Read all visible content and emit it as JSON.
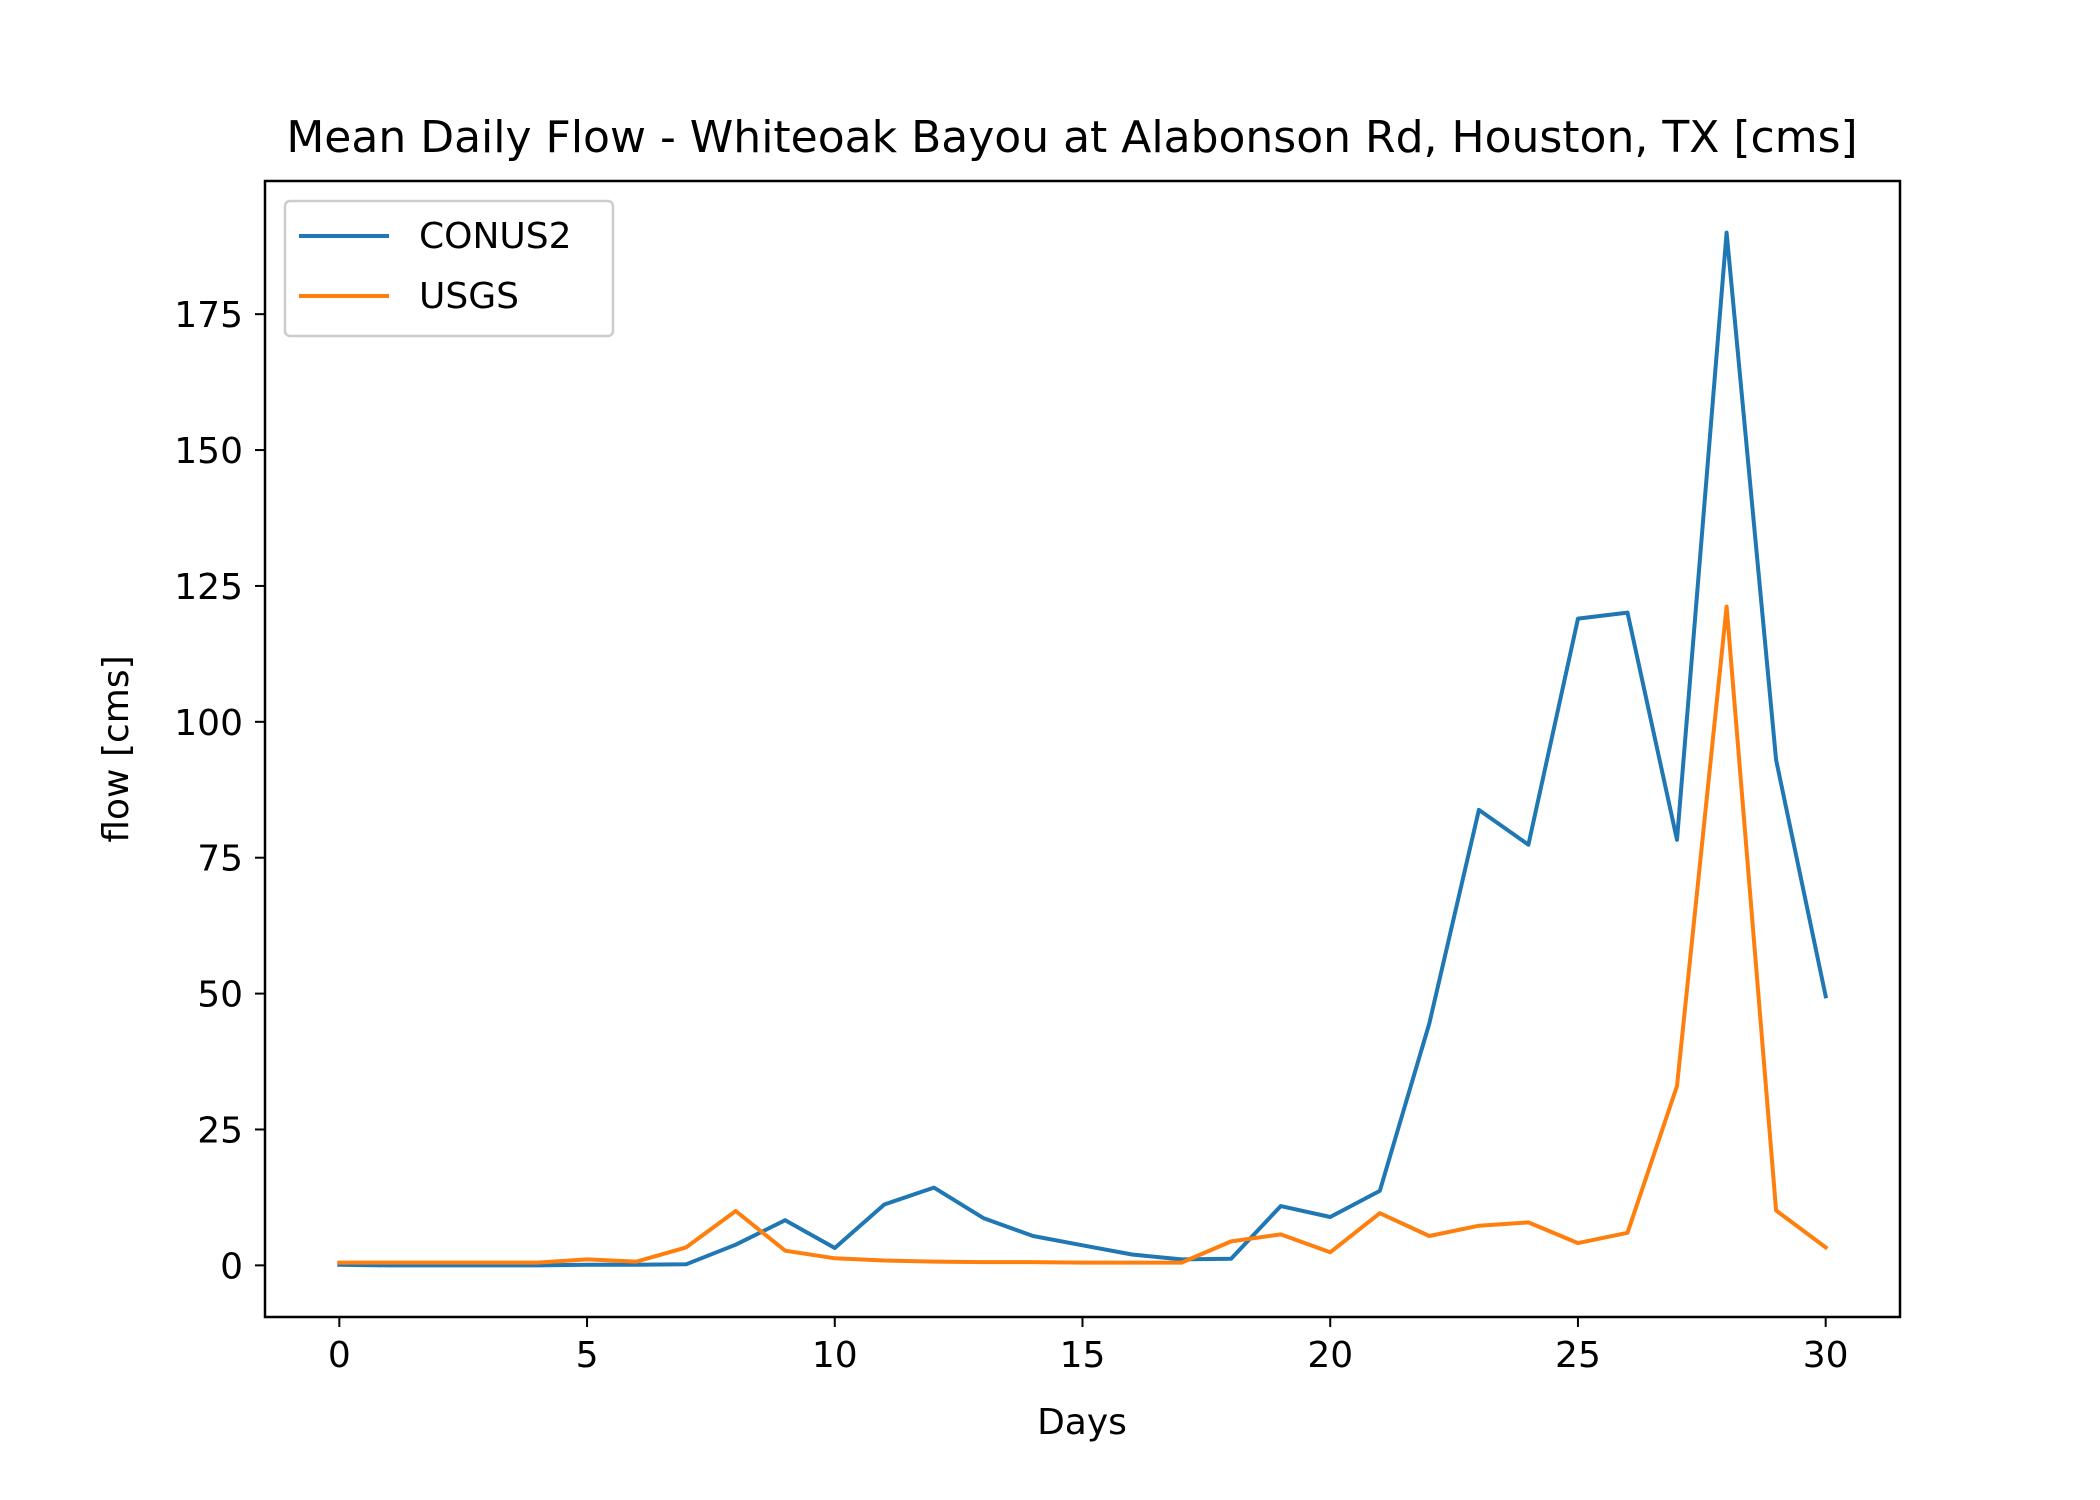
{
  "chart_data": {
    "type": "line",
    "title": "Mean Daily Flow - Whiteoak Bayou at Alabonson Rd, Houston, TX [cms]",
    "xlabel": "Days",
    "ylabel": "flow [cms]",
    "xlim": [
      -1.5,
      31.5
    ],
    "ylim": [
      -9.5,
      199.5
    ],
    "xticks": [
      0,
      5,
      10,
      15,
      20,
      25,
      30
    ],
    "yticks": [
      0,
      25,
      50,
      75,
      100,
      125,
      150,
      175
    ],
    "grid": false,
    "legend_position": "top-left",
    "x": [
      0,
      1,
      2,
      3,
      4,
      5,
      6,
      7,
      8,
      9,
      10,
      11,
      12,
      13,
      14,
      15,
      16,
      17,
      18,
      19,
      20,
      21,
      22,
      23,
      24,
      25,
      26,
      27,
      28,
      29,
      30
    ],
    "series": [
      {
        "name": "CONUS2",
        "color": "#1f77b4",
        "values": [
          0.1,
          0.0,
          0.0,
          0.0,
          0.0,
          0.1,
          0.1,
          0.2,
          3.8,
          8.3,
          3.2,
          11.2,
          14.3,
          8.7,
          5.4,
          3.7,
          2.0,
          1.1,
          1.2,
          10.9,
          8.9,
          13.7,
          44.5,
          83.8,
          77.4,
          119.0,
          120.1,
          78.3,
          190.0,
          93.0,
          49.5
        ]
      },
      {
        "name": "USGS",
        "color": "#ff7f0e",
        "values": [
          0.5,
          0.5,
          0.5,
          0.5,
          0.5,
          1.1,
          0.7,
          3.3,
          10.0,
          2.7,
          1.3,
          0.9,
          0.7,
          0.6,
          0.6,
          0.5,
          0.5,
          0.5,
          4.4,
          5.7,
          2.4,
          9.6,
          5.4,
          7.3,
          7.9,
          4.1,
          6.0,
          33.0,
          121.2,
          10.1,
          3.3
        ]
      }
    ]
  }
}
